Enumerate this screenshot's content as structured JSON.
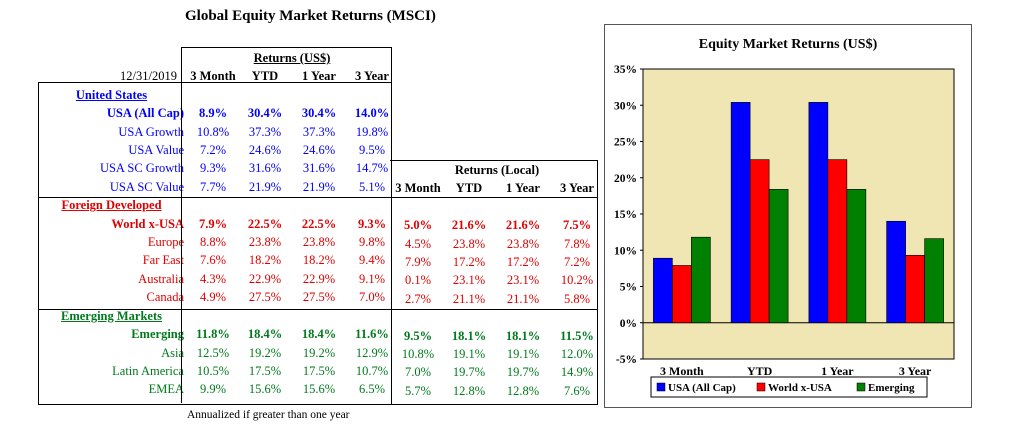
{
  "title": "Global Equity Market Returns (MSCI)",
  "date": "12/31/2019",
  "usd_header": "Returns (US$)",
  "local_header": "Returns (Local)",
  "columns": [
    "3 Month",
    "YTD",
    "1 Year",
    "3 Year"
  ],
  "footnote": "Annualized if greater than one year",
  "sections": [
    {
      "name": "United States",
      "color": "#0000ff",
      "rows": [
        {
          "label": "USA (All Cap)",
          "bold": true,
          "usd": [
            "8.9%",
            "30.4%",
            "30.4%",
            "14.0%"
          ],
          "local": []
        },
        {
          "label": "USA Growth",
          "bold": false,
          "usd": [
            "10.8%",
            "37.3%",
            "37.3%",
            "19.8%"
          ],
          "local": []
        },
        {
          "label": "USA Value",
          "bold": false,
          "usd": [
            "7.2%",
            "24.6%",
            "24.6%",
            "9.5%"
          ],
          "local": []
        },
        {
          "label": "USA SC Growth",
          "bold": false,
          "usd": [
            "9.3%",
            "31.6%",
            "31.6%",
            "14.7%"
          ],
          "local": []
        },
        {
          "label": "USA SC Value",
          "bold": false,
          "usd": [
            "7.7%",
            "21.9%",
            "21.9%",
            "5.1%"
          ],
          "local": []
        }
      ]
    },
    {
      "name": "Foreign Developed",
      "color": "#e00000",
      "rows": [
        {
          "label": "World x-USA",
          "bold": true,
          "usd": [
            "7.9%",
            "22.5%",
            "22.5%",
            "9.3%"
          ],
          "local": [
            "5.0%",
            "21.6%",
            "21.6%",
            "7.5%"
          ]
        },
        {
          "label": "Europe",
          "bold": false,
          "usd": [
            "8.8%",
            "23.8%",
            "23.8%",
            "9.8%"
          ],
          "local": [
            "4.5%",
            "23.8%",
            "23.8%",
            "7.8%"
          ]
        },
        {
          "label": "Far East",
          "bold": false,
          "usd": [
            "7.6%",
            "18.2%",
            "18.2%",
            "9.4%"
          ],
          "local": [
            "7.9%",
            "17.2%",
            "17.2%",
            "7.2%"
          ]
        },
        {
          "label": "Australia",
          "bold": false,
          "usd": [
            "4.3%",
            "22.9%",
            "22.9%",
            "9.1%"
          ],
          "local": [
            "0.1%",
            "23.1%",
            "23.1%",
            "10.2%"
          ]
        },
        {
          "label": "Canada",
          "bold": false,
          "usd": [
            "4.9%",
            "27.5%",
            "27.5%",
            "7.0%"
          ],
          "local": [
            "2.7%",
            "21.1%",
            "21.1%",
            "5.8%"
          ]
        }
      ]
    },
    {
      "name": "Emerging Markets",
      "color": "#007a1c",
      "rows": [
        {
          "label": "Emerging",
          "bold": true,
          "usd": [
            "11.8%",
            "18.4%",
            "18.4%",
            "11.6%"
          ],
          "local": [
            "9.5%",
            "18.1%",
            "18.1%",
            "11.5%"
          ]
        },
        {
          "label": "Asia",
          "bold": false,
          "usd": [
            "12.5%",
            "19.2%",
            "19.2%",
            "12.9%"
          ],
          "local": [
            "10.8%",
            "19.1%",
            "19.1%",
            "12.0%"
          ]
        },
        {
          "label": "Latin America",
          "bold": false,
          "usd": [
            "10.5%",
            "17.5%",
            "17.5%",
            "10.7%"
          ],
          "local": [
            "7.0%",
            "19.7%",
            "19.7%",
            "14.9%"
          ]
        },
        {
          "label": "EMEA",
          "bold": false,
          "usd": [
            "9.9%",
            "15.6%",
            "15.6%",
            "6.5%"
          ],
          "local": [
            "5.7%",
            "12.8%",
            "12.8%",
            "7.6%"
          ]
        }
      ]
    }
  ],
  "chart_data": {
    "type": "bar",
    "title": "Equity Market Returns (US$)",
    "categories": [
      "3 Month",
      "YTD",
      "1 Year",
      "3 Year"
    ],
    "series": [
      {
        "name": "USA (All Cap)",
        "color": "#0000ff",
        "values": [
          8.9,
          30.4,
          30.4,
          14.0
        ]
      },
      {
        "name": "World x-USA",
        "color": "#ff0000",
        "values": [
          7.9,
          22.5,
          22.5,
          9.3
        ]
      },
      {
        "name": "Emerging",
        "color": "#008000",
        "values": [
          11.8,
          18.4,
          18.4,
          11.6
        ]
      }
    ],
    "ylim": [
      -5,
      35
    ],
    "yticks": [
      35,
      30,
      25,
      20,
      15,
      10,
      5,
      0,
      -5
    ],
    "ytick_labels": [
      "35%",
      "30%",
      "25%",
      "20%",
      "15%",
      "10%",
      "5%",
      "0%",
      "-5%"
    ],
    "grid": false,
    "plot_background": "#f0e6b4",
    "legend_position": "bottom"
  }
}
